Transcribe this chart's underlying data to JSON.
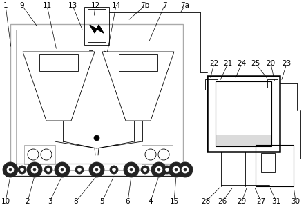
{
  "bg_color": "#ffffff",
  "line_color": "#000000",
  "gray_color": "#aaaaaa",
  "light_gray": "#cccccc",
  "dark_color": "#222222",
  "mid_gray": "#888888"
}
